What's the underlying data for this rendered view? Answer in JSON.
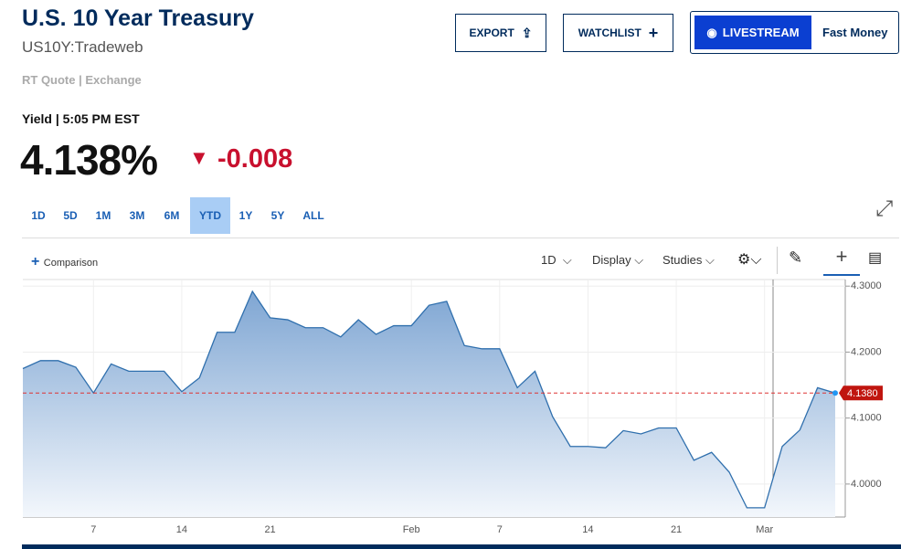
{
  "header": {
    "title": "U.S. 10 Year Treasury",
    "symbol": "US10Y:Tradeweb",
    "source": "RT Quote | Exchange"
  },
  "buttons": {
    "export": "EXPORT",
    "watchlist": "WATCHLIST",
    "livestream": "LIVESTREAM",
    "show": "Fast Money"
  },
  "quote": {
    "label": "Yield | 5:05 PM EST",
    "price": "4.138%",
    "change": "-0.008"
  },
  "ranges": [
    "1D",
    "5D",
    "1M",
    "3M",
    "6M",
    "YTD",
    "1Y",
    "5Y",
    "ALL"
  ],
  "active_range": 5,
  "toolbar": {
    "comparison": "Comparison",
    "interval": "1D",
    "display": "Display",
    "studies": "Studies"
  },
  "chart": {
    "type": "area",
    "color": "#2f6fad",
    "categories": [
      null,
      null,
      null,
      null,
      "7",
      null,
      null,
      null,
      null,
      "14",
      null,
      null,
      null,
      null,
      "21",
      null,
      null,
      null,
      null,
      null,
      null,
      null,
      "Feb",
      null,
      null,
      null,
      null,
      "7",
      null,
      null,
      null,
      null,
      "14",
      null,
      null,
      null,
      null,
      "21",
      null,
      null,
      null,
      null,
      "Mar",
      null,
      null,
      null,
      null
    ],
    "values": [
      4.175,
      4.187,
      4.187,
      4.177,
      4.138,
      4.182,
      4.171,
      4.171,
      4.171,
      4.14,
      4.161,
      4.23,
      4.23,
      4.292,
      4.252,
      4.249,
      4.237,
      4.237,
      4.223,
      4.249,
      4.227,
      4.24,
      4.24,
      4.271,
      4.277,
      4.21,
      4.205,
      4.205,
      4.146,
      4.171,
      4.102,
      4.057,
      4.057,
      4.055,
      4.081,
      4.076,
      4.085,
      4.085,
      4.036,
      4.048,
      4.018,
      3.964,
      3.964,
      4.057,
      4.082,
      4.146,
      4.138
    ],
    "ylim": [
      3.95,
      4.31
    ],
    "yticks": [
      {
        "value": 4.0,
        "label": "4.0000"
      },
      {
        "value": 4.1,
        "label": "4.1000"
      },
      {
        "value": 4.2,
        "label": "4.2000"
      },
      {
        "value": 4.3,
        "label": "4.3000"
      }
    ],
    "last_price": {
      "value": 4.138,
      "label": "4.1380"
    },
    "grid": true
  }
}
